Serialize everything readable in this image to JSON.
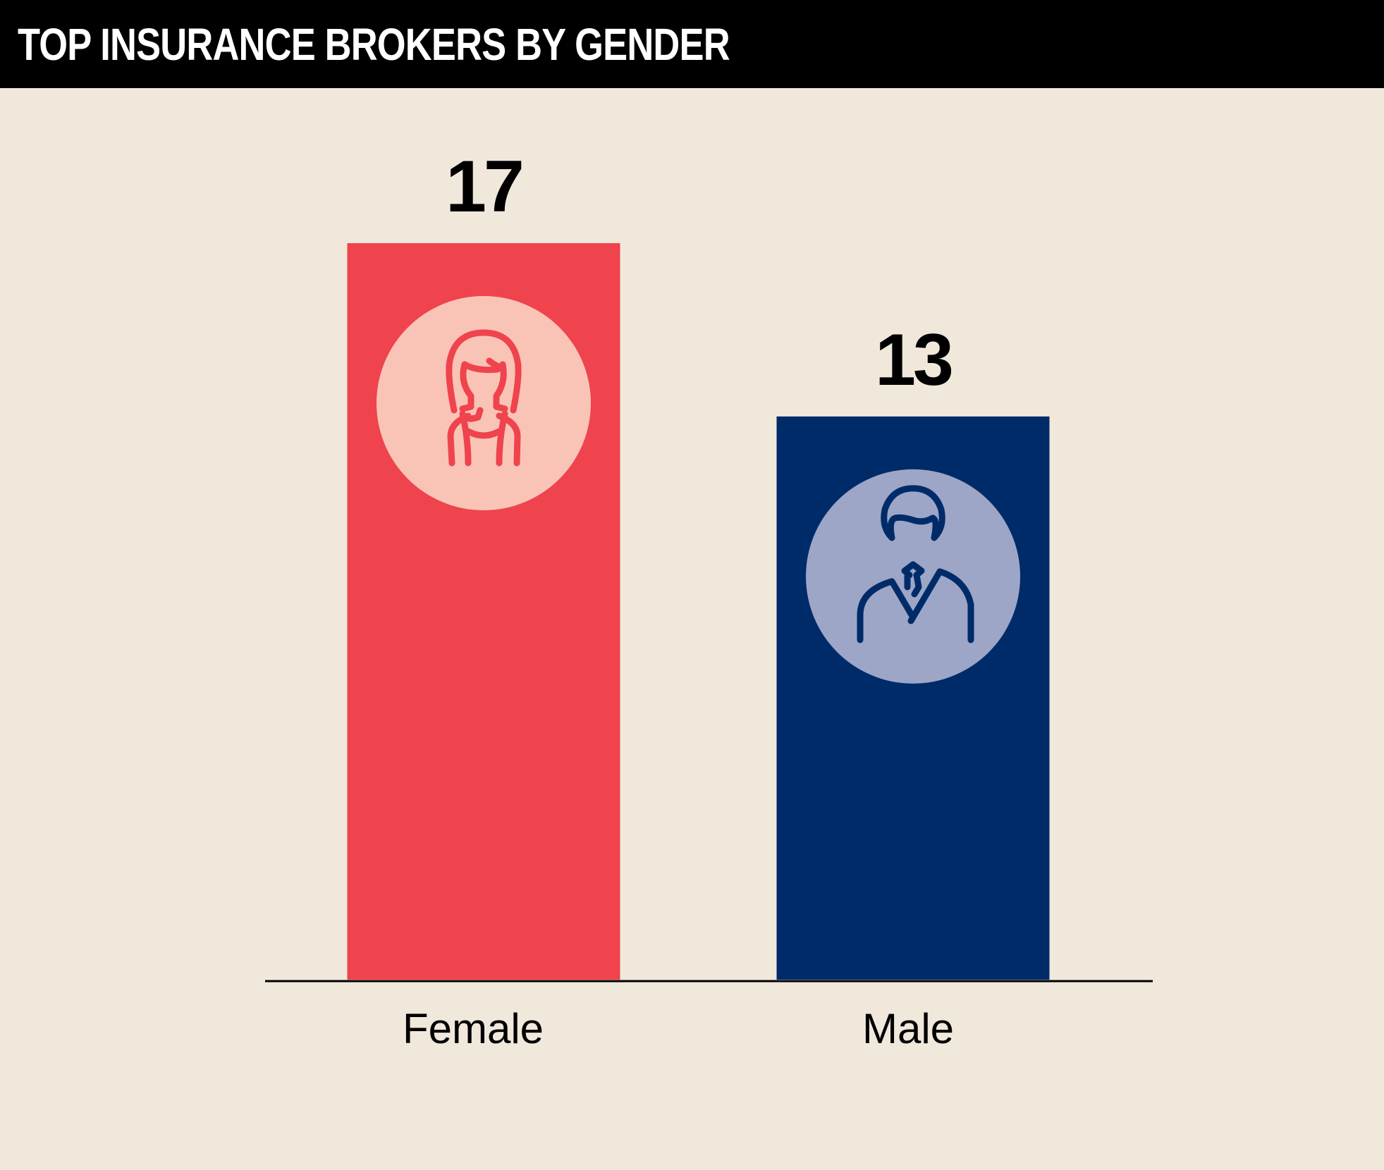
{
  "title": "TOP INSURANCE BROKERS BY GENDER",
  "chart_data": {
    "type": "bar",
    "title": "TOP INSURANCE BROKERS BY GENDER",
    "categories": [
      "Female",
      "Male"
    ],
    "values": [
      17,
      13
    ],
    "value_labels": [
      "17",
      "13"
    ],
    "xlabel": "",
    "ylabel": "",
    "ylim": [
      0,
      17
    ],
    "grid": false,
    "colors": [
      "#ef434d",
      "#002b69"
    ],
    "icon_circle_colors": [
      "#f9c4b6",
      "#9da6c7"
    ],
    "icons": [
      "female-person-icon",
      "male-person-icon"
    ]
  }
}
